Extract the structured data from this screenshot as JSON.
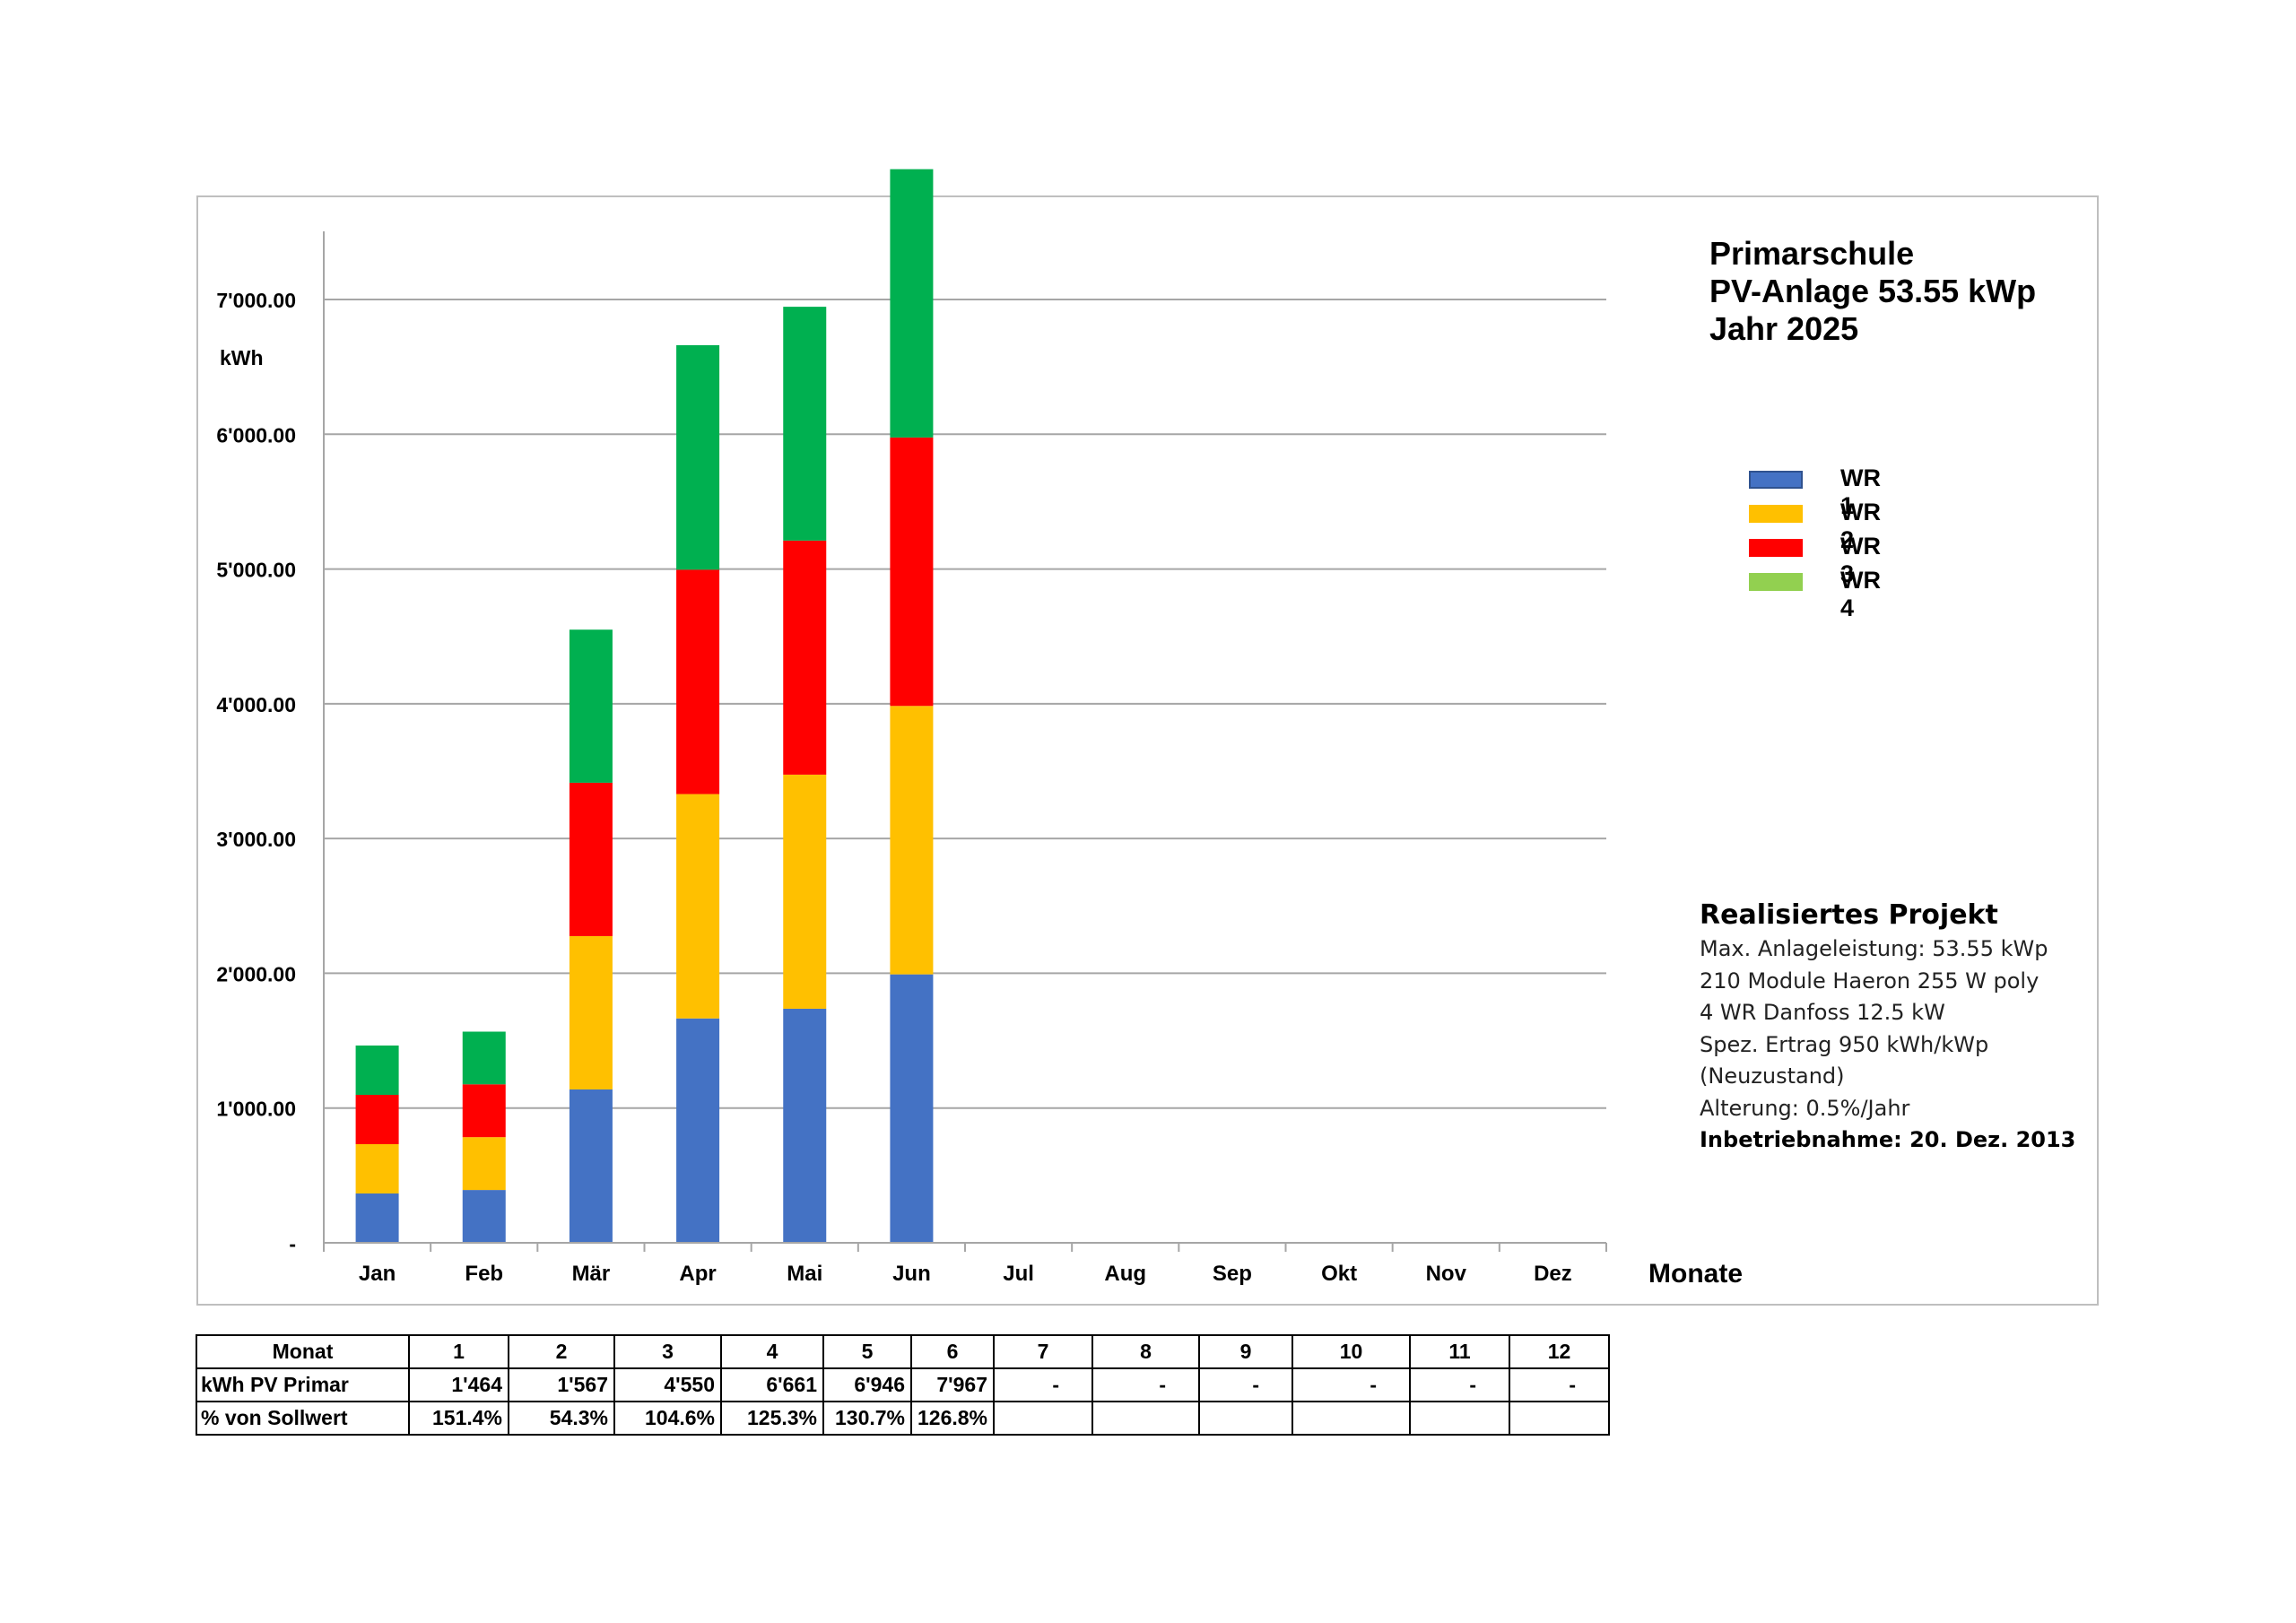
{
  "chart_data": {
    "type": "bar",
    "stacked": true,
    "categories": [
      "Jan",
      "Feb",
      "Mär",
      "Apr",
      "Mai",
      "Jun",
      "Jul",
      "Aug",
      "Sep",
      "Okt",
      "Nov",
      "Dez"
    ],
    "series": [
      {
        "name": "WR 1",
        "color": "#4472c4",
        "values": [
          366,
          392,
          1138,
          1665,
          1737,
          1992,
          0,
          0,
          0,
          0,
          0,
          0
        ]
      },
      {
        "name": "WR 2",
        "color": "#ffc000",
        "values": [
          366,
          392,
          1138,
          1665,
          1737,
          1992,
          0,
          0,
          0,
          0,
          0,
          0
        ]
      },
      {
        "name": "WR 3",
        "color": "#ff0000",
        "values": [
          366,
          392,
          1138,
          1665,
          1737,
          1992,
          0,
          0,
          0,
          0,
          0,
          0
        ]
      },
      {
        "name": "WR 4",
        "color": "#00b050",
        "legend_color": "#92d050",
        "values": [
          366,
          391,
          1136,
          1666,
          1735,
          1991,
          0,
          0,
          0,
          0,
          0,
          0
        ]
      }
    ],
    "ylim": [
      0,
      7500
    ],
    "yticks": [
      0,
      1000,
      2000,
      3000,
      4000,
      5000,
      6000,
      7000
    ],
    "ytick_labels": [
      "-",
      "1'000.00",
      "2'000.00",
      "3'000.00",
      "4'000.00",
      "5'000.00",
      "6'000.00",
      "7'000.00"
    ],
    "ylabel": "kWh",
    "xlabel": "Monate",
    "grid": "horizontal",
    "legend_position": "right",
    "title": [
      "Primarschule",
      "PV-Anlage 53.55 kWp",
      "Jahr 2025"
    ]
  },
  "info": {
    "title": "Realisiertes Projekt",
    "lines": [
      "Max. Anlageleistung: 53.55 kWp",
      "210 Module  Haeron 255 W poly",
      "4 WR Danfoss 12.5 kW",
      "Spez. Ertrag 950 kWh/kWp",
      "(Neuzustand)",
      "Alterung: 0.5%/Jahr"
    ],
    "commissioning": "Inbetriebnahme:  20. Dez. 2013"
  },
  "table": {
    "header_label": "Monat",
    "months": [
      "1",
      "2",
      "3",
      "4",
      "5",
      "6",
      "7",
      "8",
      "9",
      "10",
      "11",
      "12"
    ],
    "rows": [
      {
        "label": "kWh PV Primar",
        "values": [
          "1'464",
          "1'567",
          "4'550",
          "6'661",
          "6'946",
          "7'967",
          "-",
          "-",
          "-",
          "-",
          "-",
          "-"
        ]
      },
      {
        "label": "% von Sollwert",
        "values": [
          "151.4%",
          "54.3%",
          "104.6%",
          "125.3%",
          "130.7%",
          "126.8%",
          "",
          "",
          "",
          "",
          "",
          ""
        ]
      }
    ]
  }
}
